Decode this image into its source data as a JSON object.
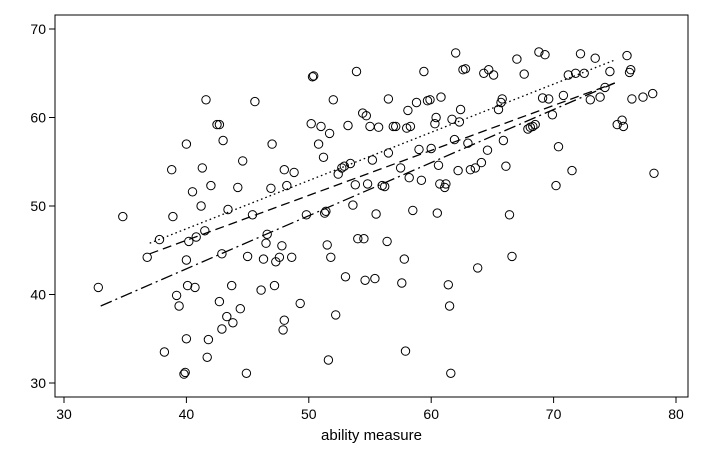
{
  "chart_data": {
    "type": "scatter",
    "title": "",
    "xlabel": "ability measure",
    "ylabel": "",
    "xlim": [
      30,
      80
    ],
    "ylim": [
      30,
      70
    ],
    "xticks": [
      30,
      40,
      50,
      60,
      70,
      80
    ],
    "yticks": [
      30,
      40,
      50,
      60,
      70
    ],
    "grid": false,
    "legend": "none",
    "marker": "hollow-circle",
    "colors": {
      "marker": "#000000",
      "lines": "#000000",
      "frame": "#000000"
    },
    "points": [
      [
        32.8,
        40.8
      ],
      [
        34.8,
        48.8
      ],
      [
        36.8,
        44.2
      ],
      [
        37.8,
        46.2
      ],
      [
        38.2,
        33.5
      ],
      [
        38.8,
        54.1
      ],
      [
        38.9,
        48.8
      ],
      [
        39.2,
        39.9
      ],
      [
        39.4,
        38.7
      ],
      [
        39.8,
        31.0
      ],
      [
        39.9,
        31.2
      ],
      [
        40.0,
        57.0
      ],
      [
        40.0,
        35.0
      ],
      [
        40.0,
        43.9
      ],
      [
        40.1,
        41.0
      ],
      [
        40.2,
        46.0
      ],
      [
        40.5,
        51.6
      ],
      [
        40.7,
        40.8
      ],
      [
        40.8,
        46.5
      ],
      [
        41.2,
        50.0
      ],
      [
        41.3,
        54.3
      ],
      [
        41.5,
        47.2
      ],
      [
        41.6,
        62.0
      ],
      [
        41.7,
        32.9
      ],
      [
        41.8,
        34.9
      ],
      [
        42.0,
        52.3
      ],
      [
        42.5,
        59.2
      ],
      [
        42.7,
        59.2
      ],
      [
        42.7,
        39.2
      ],
      [
        42.9,
        44.6
      ],
      [
        42.9,
        36.1
      ],
      [
        43.0,
        57.4
      ],
      [
        43.3,
        37.5
      ],
      [
        43.4,
        49.6
      ],
      [
        43.7,
        41.0
      ],
      [
        43.8,
        36.8
      ],
      [
        44.2,
        52.1
      ],
      [
        44.4,
        38.4
      ],
      [
        44.6,
        55.1
      ],
      [
        44.9,
        31.1
      ],
      [
        45.0,
        44.3
      ],
      [
        45.4,
        49.0
      ],
      [
        45.6,
        61.8
      ],
      [
        46.1,
        40.5
      ],
      [
        46.3,
        44.0
      ],
      [
        46.5,
        45.8
      ],
      [
        46.6,
        46.8
      ],
      [
        46.9,
        52.0
      ],
      [
        47.0,
        57.0
      ],
      [
        47.2,
        41.0
      ],
      [
        47.3,
        43.7
      ],
      [
        47.6,
        44.2
      ],
      [
        47.8,
        45.5
      ],
      [
        47.9,
        36.0
      ],
      [
        48.0,
        37.1
      ],
      [
        48.0,
        54.1
      ],
      [
        48.2,
        52.3
      ],
      [
        48.6,
        44.2
      ],
      [
        48.8,
        53.8
      ],
      [
        49.3,
        39.0
      ],
      [
        49.8,
        49.0
      ],
      [
        50.2,
        59.3
      ],
      [
        50.3,
        64.6
      ],
      [
        50.4,
        64.7
      ],
      [
        50.8,
        57.0
      ],
      [
        51.0,
        59.0
      ],
      [
        51.2,
        55.5
      ],
      [
        51.3,
        49.2
      ],
      [
        51.4,
        49.4
      ],
      [
        51.5,
        45.6
      ],
      [
        51.6,
        32.6
      ],
      [
        51.7,
        58.2
      ],
      [
        51.8,
        44.2
      ],
      [
        52.0,
        62.0
      ],
      [
        52.2,
        37.7
      ],
      [
        52.4,
        53.6
      ],
      [
        52.7,
        54.3
      ],
      [
        52.9,
        54.5
      ],
      [
        53.0,
        42.0
      ],
      [
        53.2,
        59.1
      ],
      [
        53.4,
        54.8
      ],
      [
        53.6,
        50.1
      ],
      [
        53.8,
        52.4
      ],
      [
        53.9,
        65.2
      ],
      [
        54.0,
        46.3
      ],
      [
        54.4,
        60.5
      ],
      [
        54.5,
        46.3
      ],
      [
        54.6,
        41.6
      ],
      [
        54.7,
        60.2
      ],
      [
        54.8,
        52.5
      ],
      [
        55.0,
        59.0
      ],
      [
        55.2,
        55.2
      ],
      [
        55.4,
        41.8
      ],
      [
        55.5,
        49.1
      ],
      [
        55.7,
        58.9
      ],
      [
        56.0,
        52.3
      ],
      [
        56.2,
        52.2
      ],
      [
        56.4,
        46.0
      ],
      [
        56.5,
        56.0
      ],
      [
        56.5,
        62.1
      ],
      [
        56.9,
        59.0
      ],
      [
        57.1,
        59.0
      ],
      [
        57.5,
        54.3
      ],
      [
        57.6,
        41.3
      ],
      [
        57.8,
        44.0
      ],
      [
        57.9,
        33.6
      ],
      [
        58.0,
        58.8
      ],
      [
        58.1,
        60.8
      ],
      [
        58.2,
        53.2
      ],
      [
        58.3,
        59.0
      ],
      [
        58.5,
        49.5
      ],
      [
        58.8,
        61.7
      ],
      [
        59.0,
        56.4
      ],
      [
        59.2,
        52.9
      ],
      [
        59.4,
        65.2
      ],
      [
        59.7,
        61.9
      ],
      [
        59.9,
        62.0
      ],
      [
        60.0,
        56.5
      ],
      [
        60.3,
        59.3
      ],
      [
        60.4,
        60.0
      ],
      [
        60.5,
        49.2
      ],
      [
        60.6,
        54.6
      ],
      [
        60.7,
        52.5
      ],
      [
        60.8,
        62.3
      ],
      [
        61.1,
        52.1
      ],
      [
        61.2,
        52.5
      ],
      [
        61.4,
        41.1
      ],
      [
        61.5,
        38.7
      ],
      [
        61.6,
        31.1
      ],
      [
        61.7,
        59.8
      ],
      [
        61.9,
        57.5
      ],
      [
        62.0,
        67.3
      ],
      [
        62.2,
        54.0
      ],
      [
        62.3,
        59.5
      ],
      [
        62.4,
        60.9
      ],
      [
        62.6,
        65.4
      ],
      [
        62.8,
        65.5
      ],
      [
        63.0,
        57.1
      ],
      [
        63.2,
        54.1
      ],
      [
        63.6,
        54.3
      ],
      [
        63.8,
        43.0
      ],
      [
        64.1,
        54.9
      ],
      [
        64.3,
        65.0
      ],
      [
        64.6,
        56.3
      ],
      [
        64.7,
        65.4
      ],
      [
        65.1,
        64.8
      ],
      [
        65.5,
        60.9
      ],
      [
        65.7,
        61.7
      ],
      [
        65.8,
        62.1
      ],
      [
        65.9,
        57.4
      ],
      [
        66.1,
        54.5
      ],
      [
        66.4,
        49.0
      ],
      [
        66.6,
        44.3
      ],
      [
        67.0,
        66.6
      ],
      [
        67.6,
        64.9
      ],
      [
        67.9,
        58.7
      ],
      [
        68.1,
        58.9
      ],
      [
        68.3,
        59.0
      ],
      [
        68.5,
        59.2
      ],
      [
        68.8,
        67.4
      ],
      [
        69.1,
        62.2
      ],
      [
        69.3,
        67.1
      ],
      [
        69.6,
        62.1
      ],
      [
        69.9,
        60.3
      ],
      [
        70.2,
        52.3
      ],
      [
        70.4,
        56.7
      ],
      [
        70.8,
        62.5
      ],
      [
        71.2,
        64.8
      ],
      [
        71.5,
        54.0
      ],
      [
        71.8,
        65.0
      ],
      [
        72.2,
        67.2
      ],
      [
        72.5,
        65.0
      ],
      [
        73.0,
        62.0
      ],
      [
        73.4,
        66.7
      ],
      [
        73.8,
        62.3
      ],
      [
        74.2,
        63.4
      ],
      [
        74.6,
        65.2
      ],
      [
        75.2,
        59.2
      ],
      [
        75.6,
        59.7
      ],
      [
        75.7,
        59.0
      ],
      [
        76.0,
        67.0
      ],
      [
        76.2,
        65.1
      ],
      [
        76.3,
        65.4
      ],
      [
        76.4,
        62.1
      ],
      [
        77.3,
        62.3
      ],
      [
        78.1,
        62.7
      ],
      [
        78.2,
        53.7
      ]
    ],
    "lines": [
      {
        "style": "dotted",
        "x": [
          37.0,
          75.0
        ],
        "y": [
          45.8,
          66.5
        ]
      },
      {
        "style": "dashed",
        "x": [
          37.0,
          75.0
        ],
        "y": [
          44.6,
          63.9
        ]
      },
      {
        "style": "dashdot",
        "x": [
          33.0,
          75.0
        ],
        "y": [
          38.7,
          63.9
        ]
      }
    ]
  }
}
